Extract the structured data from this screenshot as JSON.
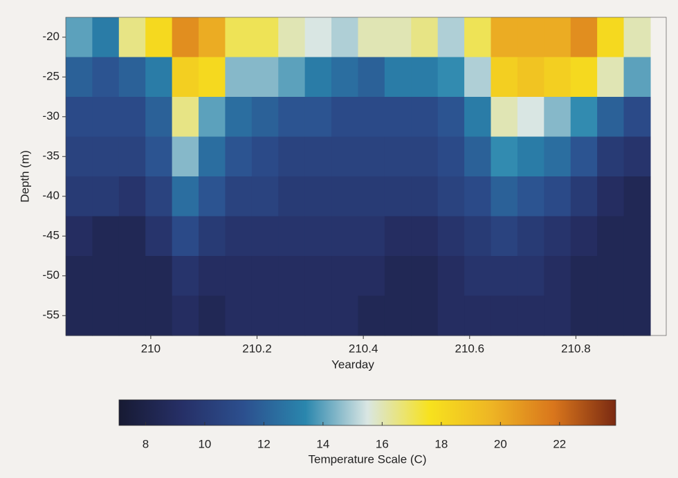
{
  "chart_data": {
    "type": "heatmap",
    "x_label": "Yearday",
    "y_label": "Depth (m)",
    "colorbar_label": "Temperature Scale (C)",
    "x": [
      209.865,
      209.915,
      209.965,
      210.015,
      210.065,
      210.115,
      210.165,
      210.215,
      210.265,
      210.315,
      210.365,
      210.415,
      210.465,
      210.515,
      210.565,
      210.615,
      210.665,
      210.715,
      210.765,
      210.815,
      210.865,
      210.915
    ],
    "y": [
      -20,
      -25,
      -30,
      -35,
      -40,
      -45,
      -50,
      -55
    ],
    "values": [
      [
        14,
        13,
        16.5,
        18,
        21,
        20,
        17,
        17,
        16,
        15.5,
        15,
        16,
        16,
        16.5,
        15,
        17,
        20,
        20,
        20,
        21,
        18,
        16
      ],
      [
        12,
        11.5,
        12,
        13,
        18.5,
        18,
        14.5,
        14.5,
        14,
        13,
        12.5,
        12,
        13,
        13,
        13.5,
        15,
        18.5,
        19,
        18.5,
        18,
        16,
        14
      ],
      [
        11,
        11,
        11,
        12,
        16.5,
        14,
        12.5,
        12,
        11.5,
        11.5,
        11,
        11,
        11,
        11,
        11.5,
        13,
        16,
        15.5,
        14.5,
        13.5,
        12,
        11
      ],
      [
        10.5,
        10.5,
        10.5,
        11.5,
        14.5,
        12.5,
        11.5,
        11,
        10.5,
        10.5,
        10.5,
        10.5,
        10.5,
        10.5,
        11,
        12,
        13.5,
        13,
        12.5,
        11.5,
        10,
        9.5
      ],
      [
        10,
        10,
        9.5,
        10.5,
        12.5,
        11.5,
        10.5,
        10.5,
        10,
        10,
        10,
        10,
        10,
        10,
        10.5,
        11,
        12,
        11.5,
        11,
        10,
        9,
        8.5
      ],
      [
        9,
        8.5,
        8.5,
        9.5,
        11,
        10,
        9.5,
        9.5,
        9.5,
        9.5,
        9.5,
        9.5,
        9,
        9,
        9.5,
        10,
        10.5,
        10,
        9.5,
        9,
        8.5,
        8.5
      ],
      [
        8.5,
        8.5,
        8.5,
        8.5,
        9.5,
        9,
        9,
        9,
        9,
        9,
        9,
        9,
        8.5,
        8.5,
        9,
        9.5,
        9.5,
        9.5,
        9,
        8.5,
        8.5,
        8.5
      ],
      [
        8.5,
        8.5,
        8.5,
        8.5,
        9,
        8.5,
        9,
        9,
        9,
        9,
        9,
        8.5,
        8.5,
        8.5,
        9,
        9,
        9,
        9,
        9,
        8.5,
        8.5,
        8.5
      ]
    ],
    "xlim": [
      209.84,
      210.97
    ],
    "xticks": [
      210,
      210.2,
      210.4,
      210.6,
      210.8
    ],
    "ylim": [
      -57.5,
      -17.5
    ],
    "yticks": [
      -20,
      -25,
      -30,
      -35,
      -40,
      -45,
      -50,
      -55
    ],
    "clim": [
      7.1,
      23.9
    ],
    "cticks": [
      8,
      10,
      12,
      14,
      16,
      18,
      20,
      22
    ],
    "colormap": [
      "#171a33",
      "#262f66",
      "#2c4f8e",
      "#2a86ad",
      "#d9e6e3",
      "#f7e21e",
      "#eeb524",
      "#d9761c",
      "#7a2a12"
    ]
  }
}
